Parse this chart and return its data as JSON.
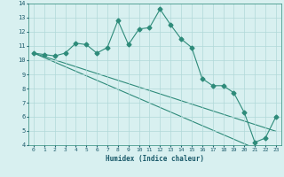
{
  "xlabel": "Humidex (Indice chaleur)",
  "ylabel": "",
  "x": [
    0,
    1,
    2,
    3,
    4,
    5,
    6,
    7,
    8,
    9,
    10,
    11,
    12,
    13,
    14,
    15,
    16,
    17,
    18,
    19,
    20,
    21,
    22,
    23
  ],
  "y_main": [
    10.5,
    10.4,
    10.3,
    10.5,
    11.2,
    11.1,
    10.5,
    10.9,
    12.8,
    11.1,
    12.2,
    12.3,
    13.6,
    12.5,
    11.5,
    10.9,
    8.7,
    8.2,
    8.2,
    7.7,
    6.3,
    4.2,
    4.5,
    6.0
  ],
  "y_trend1": [
    10.5,
    10.26,
    10.02,
    9.78,
    9.54,
    9.3,
    9.06,
    8.82,
    8.58,
    8.34,
    8.1,
    7.86,
    7.62,
    7.38,
    7.14,
    6.9,
    6.66,
    6.42,
    6.18,
    5.94,
    5.7,
    5.46,
    5.22,
    4.98
  ],
  "y_trend2": [
    10.5,
    10.18,
    9.86,
    9.54,
    9.22,
    8.9,
    8.58,
    8.26,
    7.94,
    7.62,
    7.3,
    6.98,
    6.66,
    6.34,
    6.02,
    5.7,
    5.38,
    5.06,
    4.74,
    4.42,
    4.1,
    3.78,
    3.46,
    3.14
  ],
  "line_color": "#2e8b7a",
  "bg_color": "#d8f0f0",
  "grid_color": "#b0d8d8",
  "ylim": [
    4,
    14
  ],
  "xlim": [
    -0.5,
    23.5
  ],
  "yticks": [
    4,
    5,
    6,
    7,
    8,
    9,
    10,
    11,
    12,
    13,
    14
  ],
  "xticks": [
    0,
    1,
    2,
    3,
    4,
    5,
    6,
    7,
    8,
    9,
    10,
    11,
    12,
    13,
    14,
    15,
    16,
    17,
    18,
    19,
    20,
    21,
    22,
    23
  ],
  "marker": "D",
  "marker_size": 2.5,
  "line_width": 0.8
}
